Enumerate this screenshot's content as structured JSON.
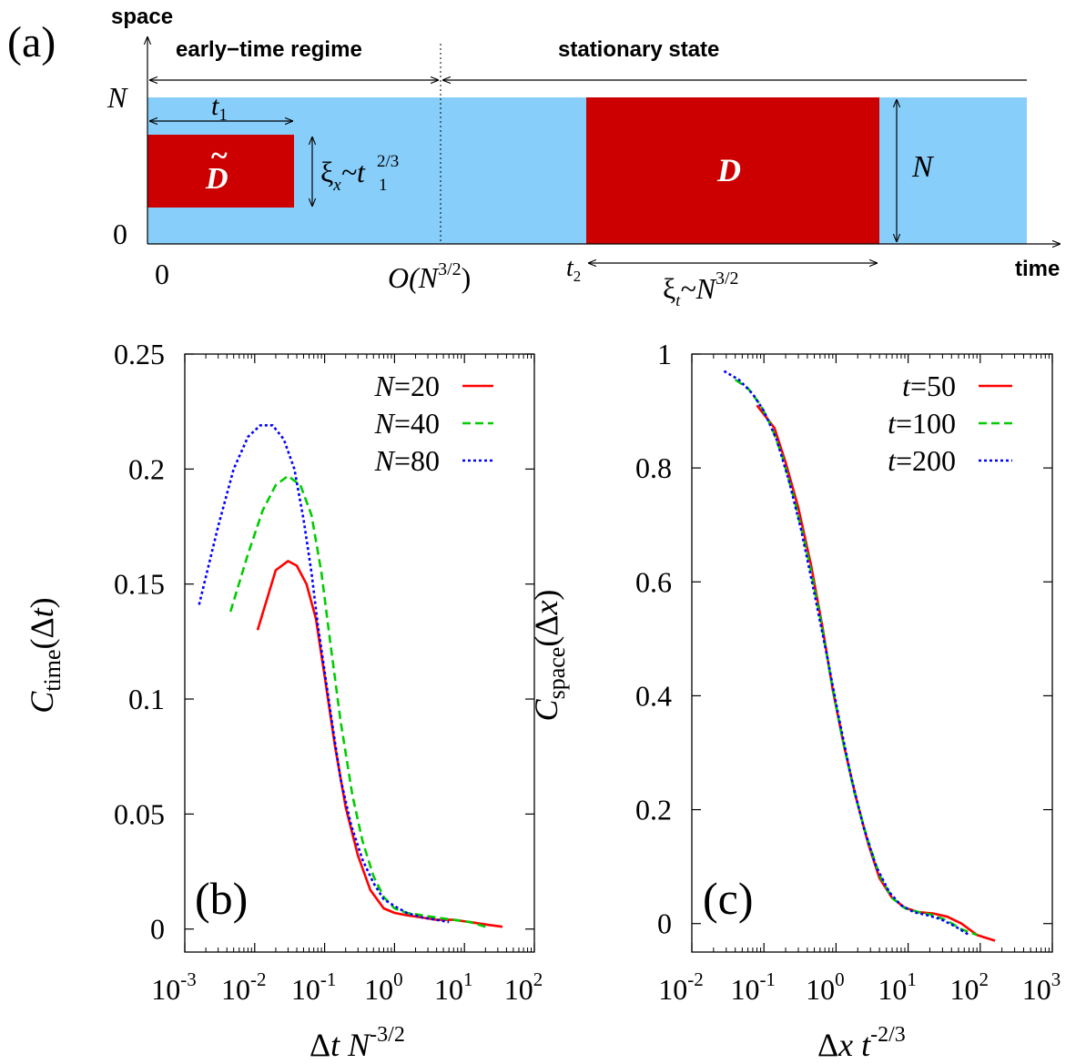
{
  "panel_a": {
    "label": "(a)",
    "y_axis_label": "space",
    "x_axis_label": "time",
    "regime_early": "early−time regime",
    "regime_stationary": "stationary state",
    "y_tick_top": "N",
    "y_tick_bottom": "0",
    "x_tick_zero": "0",
    "x_tick_mid_pre": "O(N",
    "x_tick_mid_sup": "3/2",
    "x_tick_mid_post": ")",
    "t1_base": "t",
    "t1_sub": "1",
    "t2_base": "t",
    "t2_sub": "2",
    "domain_small": "D",
    "domain_small_accent": "~",
    "domain_large": "D",
    "xi_x_base": "ξ",
    "xi_x_sub": "x",
    "xi_x_rel": "~t",
    "xi_x_rel_sub": "1",
    "xi_x_rel_sup": "2/3",
    "xi_t_base": "ξ",
    "xi_t_sub": "t",
    "xi_t_rel": "~N",
    "xi_t_rel_sup": "3/2",
    "height_label": "N",
    "colors": {
      "background": "#87cefa",
      "domain": "#cc0000"
    }
  },
  "chart_data": [
    {
      "type": "line",
      "panel_label": "(b)",
      "xlabel": "Δt N^-3/2",
      "ylabel": "C_time(Δt)",
      "xscale": "log",
      "xlim": [
        0.001,
        100
      ],
      "ylim": [
        -0.01,
        0.25
      ],
      "x_ticks": [
        0.001,
        0.01,
        0.1,
        1,
        10,
        100
      ],
      "x_tick_labels": [
        {
          "base": "10",
          "exp": "-3"
        },
        {
          "base": "10",
          "exp": "-2"
        },
        {
          "base": "10",
          "exp": "-1"
        },
        {
          "base": "10",
          "exp": "0"
        },
        {
          "base": "10",
          "exp": "1"
        },
        {
          "base": "10",
          "exp": "2"
        }
      ],
      "y_ticks": [
        0,
        0.05,
        0.1,
        0.15,
        0.2,
        0.25
      ],
      "y_tick_labels": [
        "0",
        "0.05",
        "0.1",
        "0.15",
        "0.2",
        "0.25"
      ],
      "legend_position": "top-right",
      "series": [
        {
          "name": "N=20",
          "color": "#ff0000",
          "dash": "solid",
          "x": [
            0.011,
            0.02,
            0.03,
            0.04,
            0.055,
            0.075,
            0.1,
            0.14,
            0.2,
            0.3,
            0.45,
            0.7,
            1.0,
            1.5,
            2.5,
            4,
            7,
            12,
            20,
            35
          ],
          "y": [
            0.13,
            0.156,
            0.16,
            0.158,
            0.15,
            0.135,
            0.11,
            0.08,
            0.053,
            0.032,
            0.017,
            0.009,
            0.007,
            0.006,
            0.005,
            0.004,
            0.004,
            0.003,
            0.002,
            0.001
          ]
        },
        {
          "name": "N=40",
          "color": "#00cc00",
          "dash": "dashed",
          "x": [
            0.0045,
            0.008,
            0.013,
            0.02,
            0.03,
            0.045,
            0.065,
            0.09,
            0.12,
            0.17,
            0.25,
            0.35,
            0.5,
            0.7,
            1.0,
            1.5,
            2.5,
            4,
            7,
            12,
            20
          ],
          "y": [
            0.138,
            0.163,
            0.182,
            0.193,
            0.197,
            0.193,
            0.18,
            0.155,
            0.125,
            0.09,
            0.058,
            0.038,
            0.023,
            0.014,
            0.009,
            0.007,
            0.006,
            0.005,
            0.004,
            0.003,
            0.001
          ]
        },
        {
          "name": "N=80",
          "color": "#0000ff",
          "dash": "dotted",
          "x": [
            0.0016,
            0.003,
            0.005,
            0.008,
            0.012,
            0.018,
            0.026,
            0.037,
            0.05,
            0.065,
            0.08,
            0.1,
            0.13,
            0.17,
            0.24,
            0.35,
            0.5,
            0.7,
            1.0,
            1.5,
            2.5,
            4,
            6
          ],
          "y": [
            0.141,
            0.175,
            0.2,
            0.214,
            0.219,
            0.219,
            0.213,
            0.2,
            0.178,
            0.155,
            0.132,
            0.112,
            0.088,
            0.065,
            0.045,
            0.03,
            0.02,
            0.013,
            0.01,
            0.007,
            0.005,
            0.004,
            0.003
          ]
        }
      ]
    },
    {
      "type": "line",
      "panel_label": "(c)",
      "xlabel": "Δx t^-2/3",
      "ylabel": "C_space(Δx)",
      "xscale": "log",
      "xlim": [
        0.01,
        1000
      ],
      "ylim": [
        -0.05,
        1
      ],
      "x_ticks": [
        0.01,
        0.1,
        1,
        10,
        100,
        1000
      ],
      "x_tick_labels": [
        {
          "base": "10",
          "exp": "-2"
        },
        {
          "base": "10",
          "exp": "-1"
        },
        {
          "base": "10",
          "exp": "0"
        },
        {
          "base": "10",
          "exp": "1"
        },
        {
          "base": "10",
          "exp": "2"
        },
        {
          "base": "10",
          "exp": "3"
        }
      ],
      "y_ticks": [
        0,
        0.2,
        0.4,
        0.6,
        0.8,
        1
      ],
      "y_tick_labels": [
        "0",
        "0.2",
        "0.4",
        "0.6",
        "0.8",
        "1"
      ],
      "legend_position": "top-right",
      "series": [
        {
          "name": "t=50",
          "color": "#ff0000",
          "dash": "solid",
          "x": [
            0.08,
            0.14,
            0.2,
            0.3,
            0.45,
            0.65,
            0.9,
            1.3,
            1.9,
            2.8,
            4,
            6,
            9,
            14,
            22,
            35,
            55,
            90,
            160
          ],
          "y": [
            0.91,
            0.87,
            0.81,
            0.73,
            0.63,
            0.52,
            0.41,
            0.31,
            0.22,
            0.14,
            0.08,
            0.045,
            0.028,
            0.02,
            0.018,
            0.012,
            0.0,
            -0.02,
            -0.03
          ]
        },
        {
          "name": "t=100",
          "color": "#00cc00",
          "dash": "dashed",
          "x": [
            0.04,
            0.06,
            0.09,
            0.13,
            0.18,
            0.27,
            0.4,
            0.6,
            0.85,
            1.2,
            1.8,
            2.7,
            4,
            6,
            9,
            14,
            22,
            35,
            55,
            90
          ],
          "y": [
            0.955,
            0.94,
            0.91,
            0.87,
            0.82,
            0.74,
            0.65,
            0.54,
            0.43,
            0.33,
            0.23,
            0.15,
            0.085,
            0.045,
            0.027,
            0.02,
            0.015,
            0.005,
            -0.01,
            -0.02
          ]
        },
        {
          "name": "t=200",
          "color": "#0000ff",
          "dash": "dotted",
          "x": [
            0.028,
            0.045,
            0.07,
            0.1,
            0.15,
            0.22,
            0.33,
            0.5,
            0.75,
            1.1,
            1.6,
            2.4,
            3.6,
            5.5,
            8,
            12,
            18,
            28,
            45,
            70
          ],
          "y": [
            0.97,
            0.955,
            0.93,
            0.9,
            0.85,
            0.78,
            0.69,
            0.58,
            0.47,
            0.36,
            0.26,
            0.17,
            0.1,
            0.055,
            0.032,
            0.02,
            0.015,
            0.008,
            -0.005,
            -0.02
          ]
        }
      ]
    }
  ]
}
